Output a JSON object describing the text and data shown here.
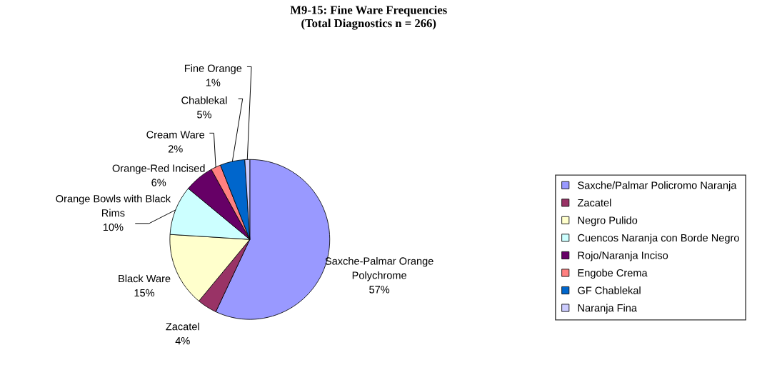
{
  "chart_data": {
    "type": "pie",
    "title": "M9-15: Fine Ware Frequencies\n(Total Diagnostics n = 266)",
    "categories": [
      "Saxche/Palmar Policromo Naranja",
      "Zacatel",
      "Negro Pulido",
      "Cuencos Naranja con Borde Negro",
      "Rojo/Naranja Inciso",
      "Engobe Crema",
      "GF Chablekal",
      "Naranja Fina"
    ],
    "values": [
      57,
      4,
      15,
      10,
      6,
      2,
      5,
      1
    ],
    "colors": [
      "#9999ff",
      "#993366",
      "#ffffcc",
      "#ccffff",
      "#660066",
      "#ff8080",
      "#0066cc",
      "#ccccff"
    ],
    "value_labels": [
      "Saxche-Palmar Orange\nPolychrome\n57%",
      "Zacatel\n4%",
      "Black Ware\n15%",
      "Orange Bowls with Black\nRims\n10%",
      "Orange-Red Incised\n6%",
      "Cream Ware\n2%",
      "Chablekal\n5%",
      "Fine Orange\n1%"
    ],
    "legend": "right"
  }
}
